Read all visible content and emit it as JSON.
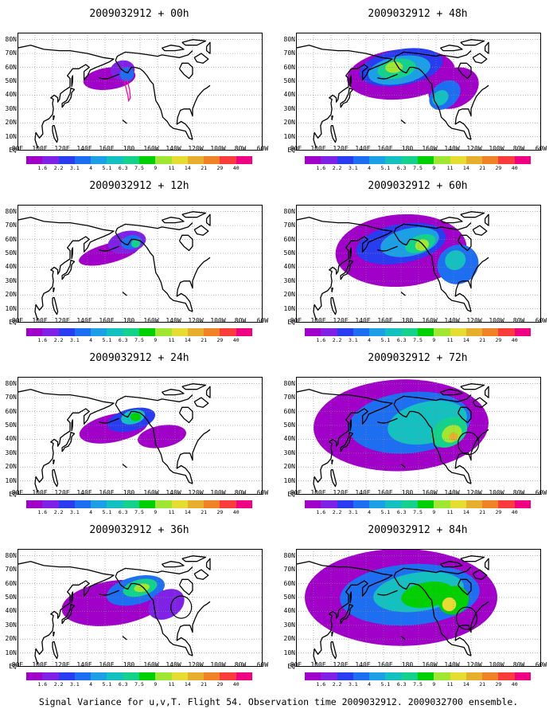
{
  "figure": {
    "caption": "Signal Variance for u,v,T. Flight 54. Observation time 2009032912. 2009032700 ensemble."
  },
  "lat_labels": [
    "80N",
    "70N",
    "60N",
    "50N",
    "40N",
    "30N",
    "20N",
    "10N",
    "EQ"
  ],
  "lon_labels": [
    "80E",
    "100E",
    "120E",
    "140E",
    "160E",
    "180",
    "160W",
    "140W",
    "120W",
    "100W",
    "80W",
    "60W"
  ],
  "colorbar": {
    "tick_labels": [
      "1.6",
      "2.2",
      "3.1",
      "4",
      "5.1",
      "6.3",
      "7.5",
      "9",
      "11",
      "14",
      "21",
      "29",
      "40"
    ],
    "colors": [
      "#a000c8",
      "#7f22e6",
      "#2a3cf0",
      "#1e6ef2",
      "#1ba0e6",
      "#15c0c0",
      "#14d28c",
      "#00d000",
      "#a0e632",
      "#e6dc32",
      "#e6af2d",
      "#f08228",
      "#fa3c3c",
      "#f00082"
    ]
  },
  "panels": [
    {
      "title": "2009032912 + 00h",
      "lead_hours": 0
    },
    {
      "title": "2009032912 + 48h",
      "lead_hours": 48
    },
    {
      "title": "2009032912 + 12h",
      "lead_hours": 12
    },
    {
      "title": "2009032912 + 60h",
      "lead_hours": 60
    },
    {
      "title": "2009032912 + 24h",
      "lead_hours": 24
    },
    {
      "title": "2009032912 + 72h",
      "lead_hours": 72
    },
    {
      "title": "2009032912 + 36h",
      "lead_hours": 36
    },
    {
      "title": "2009032912 + 84h",
      "lead_hours": 84
    }
  ]
}
